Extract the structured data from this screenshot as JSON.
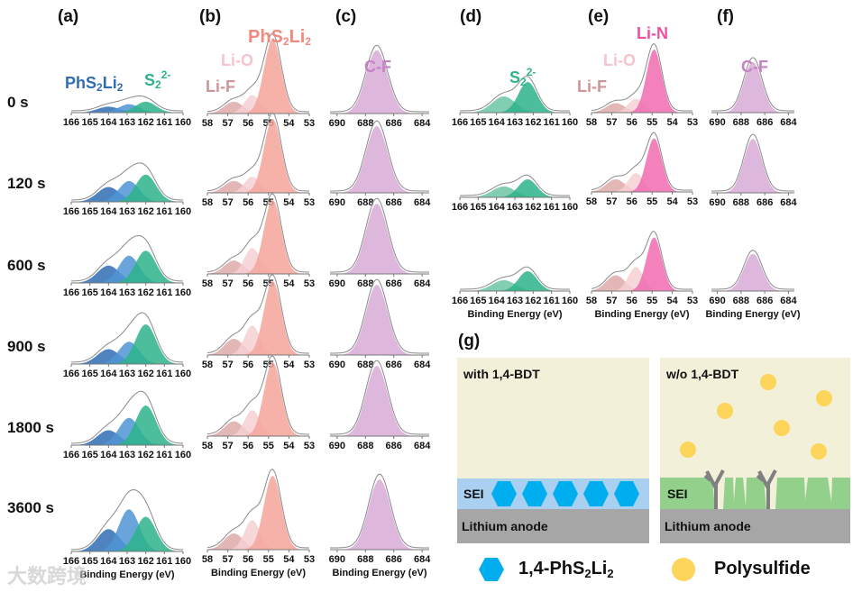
{
  "panel_labels": [
    "(a)",
    "(b)",
    "(c)",
    "(d)",
    "(e)",
    "(f)",
    "(g)"
  ],
  "row_labels": [
    "0 s",
    "120 s",
    "600 s",
    "900 s",
    "1800 s",
    "3600 s"
  ],
  "peak_labels": {
    "phs2li2": [
      "PhS",
      "2",
      "Li",
      "2"
    ],
    "s2": [
      "S",
      "2",
      "2-"
    ],
    "lio": "Li-O",
    "lif": "Li-F",
    "lin": "Li-N",
    "cf": "C-F"
  },
  "schematic": {
    "left_title": "with 1,4-BDT",
    "right_title": "w/o 1,4-BDT",
    "sei": "SEI",
    "anode": "Lithium anode",
    "legend": {
      "hex_label": [
        "1,4-PhS",
        "2",
        "Li",
        "2"
      ],
      "circle_label": "Polysulfide"
    },
    "colors": {
      "electrolyte": "#f3f0da",
      "sei_with": "#a9d0f0",
      "sei_without": "#92d08c",
      "anode": "#a6a6a6",
      "hexagon": "#00aeef",
      "polysulfide": "#fcd55a",
      "dendrite": "#808080"
    }
  },
  "watermark": "大数跨境",
  "chart_data": [
    {
      "panel": "(a)",
      "type": "area",
      "xlim": [
        166,
        160
      ],
      "xticks": [
        "166",
        "165",
        "164",
        "163",
        "162",
        "161",
        "160"
      ],
      "xlabel": "Binding Energy (eV)",
      "rows": [
        {
          "time": "0 s",
          "peaks": [
            {
              "name": "PhS2Li2",
              "center": 164.0,
              "amplitude": 0.12,
              "fwhm": 1.4,
              "color": "#2f6db5"
            },
            {
              "name": "PhS2Li2",
              "center": 162.9,
              "amplitude": 0.17,
              "fwhm": 1.3,
              "color": "#4f95d4"
            },
            {
              "name": "S2 2-",
              "center": 162.0,
              "amplitude": 0.22,
              "fwhm": 1.3,
              "color": "#2db38a"
            }
          ]
        },
        {
          "time": "120 s",
          "peaks": [
            {
              "name": "PhS2Li2",
              "center": 164.0,
              "amplitude": 0.3,
              "fwhm": 1.4,
              "color": "#2f6db5"
            },
            {
              "name": "PhS2Li2",
              "center": 162.9,
              "amplitude": 0.42,
              "fwhm": 1.3,
              "color": "#4f95d4"
            },
            {
              "name": "S2 2-",
              "center": 162.0,
              "amplitude": 0.55,
              "fwhm": 1.3,
              "color": "#2db38a"
            }
          ]
        },
        {
          "time": "600 s",
          "peaks": [
            {
              "name": "PhS2Li2",
              "center": 164.0,
              "amplitude": 0.35,
              "fwhm": 1.4,
              "color": "#2f6db5"
            },
            {
              "name": "PhS2Li2",
              "center": 162.9,
              "amplitude": 0.55,
              "fwhm": 1.3,
              "color": "#4f95d4"
            },
            {
              "name": "S2 2-",
              "center": 162.0,
              "amplitude": 0.65,
              "fwhm": 1.3,
              "color": "#2db38a"
            }
          ]
        },
        {
          "time": "900 s",
          "peaks": [
            {
              "name": "PhS2Li2",
              "center": 164.0,
              "amplitude": 0.3,
              "fwhm": 1.4,
              "color": "#2f6db5"
            },
            {
              "name": "PhS2Li2",
              "center": 162.9,
              "amplitude": 0.45,
              "fwhm": 1.3,
              "color": "#4f95d4"
            },
            {
              "name": "S2 2-",
              "center": 162.0,
              "amplitude": 0.8,
              "fwhm": 1.3,
              "color": "#2db38a"
            }
          ]
        },
        {
          "time": "1800 s",
          "peaks": [
            {
              "name": "PhS2Li2",
              "center": 164.0,
              "amplitude": 0.3,
              "fwhm": 1.4,
              "color": "#2f6db5"
            },
            {
              "name": "PhS2Li2",
              "center": 162.9,
              "amplitude": 0.55,
              "fwhm": 1.3,
              "color": "#4f95d4"
            },
            {
              "name": "S2 2-",
              "center": 162.0,
              "amplitude": 0.8,
              "fwhm": 1.3,
              "color": "#2db38a"
            }
          ]
        },
        {
          "time": "3600 s",
          "peaks": [
            {
              "name": "PhS2Li2",
              "center": 164.0,
              "amplitude": 0.45,
              "fwhm": 1.4,
              "color": "#2f6db5"
            },
            {
              "name": "PhS2Li2",
              "center": 162.9,
              "amplitude": 0.85,
              "fwhm": 1.3,
              "color": "#4f95d4"
            },
            {
              "name": "S2 2-",
              "center": 162.0,
              "amplitude": 0.7,
              "fwhm": 1.3,
              "color": "#2db38a"
            }
          ]
        }
      ]
    },
    {
      "panel": "(b)",
      "type": "area",
      "xlim": [
        58,
        53
      ],
      "xticks": [
        "58",
        "57",
        "56",
        "55",
        "54",
        "53"
      ],
      "xlabel": "Binding Energy (eV)",
      "rows": [
        {
          "time": "0 s",
          "peaks": [
            {
              "name": "Li-F",
              "center": 56.7,
              "amplitude": 0.16,
              "fwhm": 1.1,
              "color": "#ddaaa8"
            },
            {
              "name": "Li-O",
              "center": 55.8,
              "amplitude": 0.25,
              "fwhm": 0.9,
              "color": "#f7d0d4"
            },
            {
              "name": "PhS2Li2",
              "center": 54.8,
              "amplitude": 1.0,
              "fwhm": 1.0,
              "color": "#f4a49a"
            }
          ]
        },
        {
          "time": "120 s",
          "peaks": [
            {
              "name": "Li-F",
              "center": 56.7,
              "amplitude": 0.16,
              "fwhm": 1.1,
              "color": "#ddaaa8"
            },
            {
              "name": "Li-O",
              "center": 55.8,
              "amplitude": 0.22,
              "fwhm": 0.9,
              "color": "#f7d0d4"
            },
            {
              "name": "PhS2Li2",
              "center": 54.8,
              "amplitude": 1.0,
              "fwhm": 1.0,
              "color": "#f4a49a"
            }
          ]
        },
        {
          "time": "600 s",
          "peaks": [
            {
              "name": "Li-F",
              "center": 56.7,
              "amplitude": 0.18,
              "fwhm": 1.1,
              "color": "#ddaaa8"
            },
            {
              "name": "Li-O",
              "center": 55.8,
              "amplitude": 0.35,
              "fwhm": 0.9,
              "color": "#f7d0d4"
            },
            {
              "name": "PhS2Li2",
              "center": 54.8,
              "amplitude": 1.0,
              "fwhm": 1.0,
              "color": "#f4a49a"
            }
          ]
        },
        {
          "time": "900 s",
          "peaks": [
            {
              "name": "Li-F",
              "center": 56.7,
              "amplitude": 0.22,
              "fwhm": 1.1,
              "color": "#ddaaa8"
            },
            {
              "name": "Li-O",
              "center": 55.8,
              "amplitude": 0.4,
              "fwhm": 0.9,
              "color": "#f7d0d4"
            },
            {
              "name": "PhS2Li2",
              "center": 54.8,
              "amplitude": 1.0,
              "fwhm": 1.0,
              "color": "#f4a49a"
            }
          ]
        },
        {
          "time": "1800 s",
          "peaks": [
            {
              "name": "Li-F",
              "center": 56.7,
              "amplitude": 0.2,
              "fwhm": 1.1,
              "color": "#ddaaa8"
            },
            {
              "name": "Li-O",
              "center": 55.8,
              "amplitude": 0.35,
              "fwhm": 0.9,
              "color": "#f7d0d4"
            },
            {
              "name": "PhS2Li2",
              "center": 54.8,
              "amplitude": 1.0,
              "fwhm": 1.0,
              "color": "#f4a49a"
            }
          ]
        },
        {
          "time": "3600 s",
          "peaks": [
            {
              "name": "Li-F",
              "center": 56.7,
              "amplitude": 0.22,
              "fwhm": 1.1,
              "color": "#ddaaa8"
            },
            {
              "name": "Li-O",
              "center": 55.8,
              "amplitude": 0.4,
              "fwhm": 0.9,
              "color": "#f7d0d4"
            },
            {
              "name": "PhS2Li2",
              "center": 54.8,
              "amplitude": 1.0,
              "fwhm": 1.0,
              "color": "#f4a49a"
            }
          ]
        }
      ]
    },
    {
      "panel": "(c)",
      "type": "area",
      "xlim": [
        690.5,
        683.5
      ],
      "xticks": [
        "690",
        "688",
        "686",
        "684"
      ],
      "xlabel": "Binding Energy (eV)",
      "rows": [
        {
          "time": "0 s",
          "peaks": [
            {
              "name": "C-F",
              "center": 687.2,
              "amplitude": 0.9,
              "fwhm": 1.8,
              "color": "#d8aad6"
            }
          ]
        },
        {
          "time": "120 s",
          "peaks": [
            {
              "name": "C-F",
              "center": 687.2,
              "amplitude": 0.95,
              "fwhm": 1.8,
              "color": "#d8aad6"
            }
          ]
        },
        {
          "time": "600 s",
          "peaks": [
            {
              "name": "C-F",
              "center": 687.2,
              "amplitude": 1.0,
              "fwhm": 1.8,
              "color": "#d8aad6"
            }
          ]
        },
        {
          "time": "900 s",
          "peaks": [
            {
              "name": "C-F",
              "center": 687.2,
              "amplitude": 1.0,
              "fwhm": 1.8,
              "color": "#d8aad6"
            }
          ]
        },
        {
          "time": "1800 s",
          "peaks": [
            {
              "name": "C-F",
              "center": 687.2,
              "amplitude": 1.0,
              "fwhm": 1.8,
              "color": "#d8aad6"
            }
          ]
        },
        {
          "time": "3600 s",
          "peaks": [
            {
              "name": "C-F",
              "center": 687.0,
              "amplitude": 1.0,
              "fwhm": 1.8,
              "color": "#d8aad6"
            }
          ]
        }
      ]
    },
    {
      "panel": "(d)",
      "type": "area",
      "xlim": [
        166,
        160
      ],
      "xticks": [
        "166",
        "165",
        "164",
        "163",
        "162",
        "161",
        "160"
      ],
      "xlabel": "Binding Energy (eV)",
      "rows": [
        {
          "peaks": [
            {
              "name": "PhS2Li2",
              "center": 163.6,
              "amplitude": 0.45,
              "fwhm": 1.5,
              "color": "#6cc6a4"
            },
            {
              "name": "S2 2-",
              "center": 162.3,
              "amplitude": 0.85,
              "fwhm": 1.2,
              "color": "#2db38a"
            }
          ]
        },
        {
          "peaks": [
            {
              "name": "PhS2Li2",
              "center": 163.6,
              "amplitude": 0.3,
              "fwhm": 1.5,
              "color": "#6cc6a4"
            },
            {
              "name": "S2 2-",
              "center": 162.3,
              "amplitude": 0.5,
              "fwhm": 1.2,
              "color": "#2db38a"
            }
          ]
        },
        {
          "peaks": [
            {
              "name": "PhS2Li2",
              "center": 163.6,
              "amplitude": 0.3,
              "fwhm": 1.5,
              "color": "#6cc6a4"
            },
            {
              "name": "S2 2-",
              "center": 162.3,
              "amplitude": 0.55,
              "fwhm": 1.2,
              "color": "#2db38a"
            }
          ]
        }
      ]
    },
    {
      "panel": "(e)",
      "type": "area",
      "xlim": [
        58,
        53
      ],
      "xticks": [
        "58",
        "57",
        "56",
        "55",
        "54",
        "53"
      ],
      "xlabel": "Binding Energy (eV)",
      "rows": [
        {
          "peaks": [
            {
              "name": "Li-F",
              "center": 56.8,
              "amplitude": 0.15,
              "fwhm": 1.1,
              "color": "#ddaaa8"
            },
            {
              "name": "Li-O",
              "center": 55.8,
              "amplitude": 0.22,
              "fwhm": 0.9,
              "color": "#f7d0d4"
            },
            {
              "name": "Li-N",
              "center": 54.9,
              "amplitude": 1.0,
              "fwhm": 0.9,
              "color": "#f06bb0"
            }
          ]
        },
        {
          "peaks": [
            {
              "name": "Li-F",
              "center": 56.8,
              "amplitude": 0.2,
              "fwhm": 1.1,
              "color": "#ddaaa8"
            },
            {
              "name": "Li-O",
              "center": 55.8,
              "amplitude": 0.3,
              "fwhm": 0.9,
              "color": "#f7d0d4"
            },
            {
              "name": "Li-N",
              "center": 54.9,
              "amplitude": 0.85,
              "fwhm": 0.9,
              "color": "#f06bb0"
            }
          ]
        },
        {
          "peaks": [
            {
              "name": "Li-F",
              "center": 56.8,
              "amplitude": 0.25,
              "fwhm": 1.1,
              "color": "#ddaaa8"
            },
            {
              "name": "Li-O",
              "center": 55.8,
              "amplitude": 0.38,
              "fwhm": 0.9,
              "color": "#f7d0d4"
            },
            {
              "name": "Li-N",
              "center": 54.9,
              "amplitude": 0.85,
              "fwhm": 0.9,
              "color": "#f06bb0"
            }
          ]
        }
      ]
    },
    {
      "panel": "(f)",
      "type": "area",
      "xlim": [
        690.5,
        683.5
      ],
      "xticks": [
        "690",
        "688",
        "686",
        "684"
      ],
      "xlabel": "Binding Energy (eV)",
      "rows": [
        {
          "peaks": [
            {
              "name": "C-F",
              "center": 687.0,
              "amplitude": 0.75,
              "fwhm": 1.8,
              "color": "#d8aad6"
            }
          ]
        },
        {
          "peaks": [
            {
              "name": "C-F",
              "center": 687.0,
              "amplitude": 0.8,
              "fwhm": 1.8,
              "color": "#d8aad6"
            }
          ]
        },
        {
          "peaks": [
            {
              "name": "C-F",
              "center": 687.0,
              "amplitude": 0.55,
              "fwhm": 1.8,
              "color": "#d8aad6"
            }
          ]
        }
      ]
    }
  ]
}
